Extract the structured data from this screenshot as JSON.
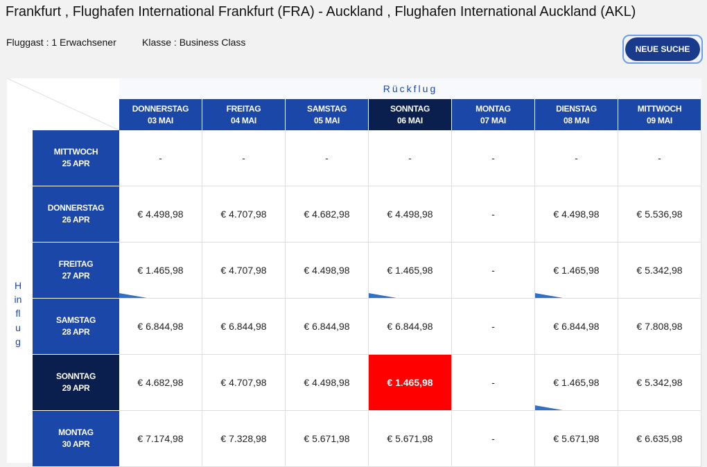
{
  "header": {
    "title": "Frankfurt , Flughafen International Frankfurt (FRA) - Auckland , Flughafen International Auckland (AKL)",
    "passengers": "Fluggast : 1 Erwachsener",
    "class": "Klasse : Business Class",
    "button": "NEUE SUCHE"
  },
  "table": {
    "return_label": "Rückflug",
    "outbound_label": "Hinflug",
    "columns": [
      {
        "day": "DONNERSTAG",
        "date": "03 MAI"
      },
      {
        "day": "FREITAG",
        "date": "04 MAI"
      },
      {
        "day": "SAMSTAG",
        "date": "05 MAI"
      },
      {
        "day": "SONNTAG",
        "date": "06 MAI"
      },
      {
        "day": "MONTAG",
        "date": "07 MAI"
      },
      {
        "day": "DIENSTAG",
        "date": "08 MAI"
      },
      {
        "day": "MITTWOCH",
        "date": "09 MAI"
      }
    ],
    "rows": [
      {
        "day": "MITTWOCH",
        "date": "25 APR",
        "cells": [
          "-",
          "-",
          "-",
          "-",
          "-",
          "-",
          "-"
        ]
      },
      {
        "day": "DONNERSTAG",
        "date": "26 APR",
        "cells": [
          "€ 4.498,98",
          "€ 4.707,98",
          "€ 4.682,98",
          "€ 4.498,98",
          "-",
          "€ 4.498,98",
          "€ 5.536,98"
        ]
      },
      {
        "day": "FREITAG",
        "date": "27 APR",
        "cells": [
          "€ 1.465,98",
          "€ 4.707,98",
          "€ 4.498,98",
          "€ 1.465,98",
          "-",
          "€ 1.465,98",
          "€ 5.342,98"
        ]
      },
      {
        "day": "SAMSTAG",
        "date": "28 APR",
        "cells": [
          "€ 6.844,98",
          "€ 6.844,98",
          "€ 6.844,98",
          "€ 6.844,98",
          "-",
          "€ 6.844,98",
          "€ 7.808,98"
        ]
      },
      {
        "day": "SONNTAG",
        "date": "29 APR",
        "cells": [
          "€ 4.682,98",
          "€ 4.707,98",
          "€ 4.498,98",
          "€ 1.465,98",
          "-",
          "€ 1.465,98",
          "€ 5.342,98"
        ]
      },
      {
        "day": "MONTAG",
        "date": "30 APR",
        "cells": [
          "€ 7.174,98",
          "€ 7.328,98",
          "€ 5.671,98",
          "€ 5.671,98",
          "-",
          "€ 5.671,98",
          "€ 6.635,98"
        ]
      }
    ]
  }
}
